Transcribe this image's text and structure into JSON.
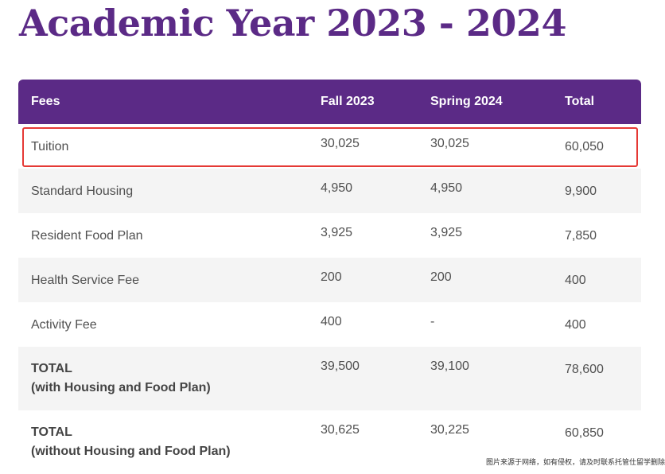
{
  "page": {
    "title": "Academic Year 2023 - 2024"
  },
  "table": {
    "headers": [
      "Fees",
      "Fall 2023",
      "Spring 2024",
      "Total"
    ],
    "rows": [
      {
        "fee": "Tuition",
        "fall": "30,025",
        "spring": "30,025",
        "total": "60,050"
      },
      {
        "fee": "Standard Housing",
        "fall": "4,950",
        "spring": "4,950",
        "total": "9,900"
      },
      {
        "fee": "Resident Food Plan",
        "fall": "3,925",
        "spring": "3,925",
        "total": "7,850"
      },
      {
        "fee": "Health Service Fee",
        "fall": "200",
        "spring": "200",
        "total": "400"
      },
      {
        "fee": "Activity Fee",
        "fall": "400",
        "spring": "-",
        "total": "400"
      }
    ],
    "totals": [
      {
        "label": "TOTAL",
        "sublabel": "(with Housing and Food Plan)",
        "fall": "39,500",
        "spring": "39,100",
        "total": "78,600"
      },
      {
        "label": "TOTAL",
        "sublabel": "(without Housing and Food Plan)",
        "fall": "30,625",
        "spring": "30,225",
        "total": "60,850"
      }
    ]
  },
  "watermark": "图片来源于网络，如有侵权，请及时联系托管仕留学删除",
  "colors": {
    "brand": "#5b2a86",
    "highlight": "#e53935"
  }
}
